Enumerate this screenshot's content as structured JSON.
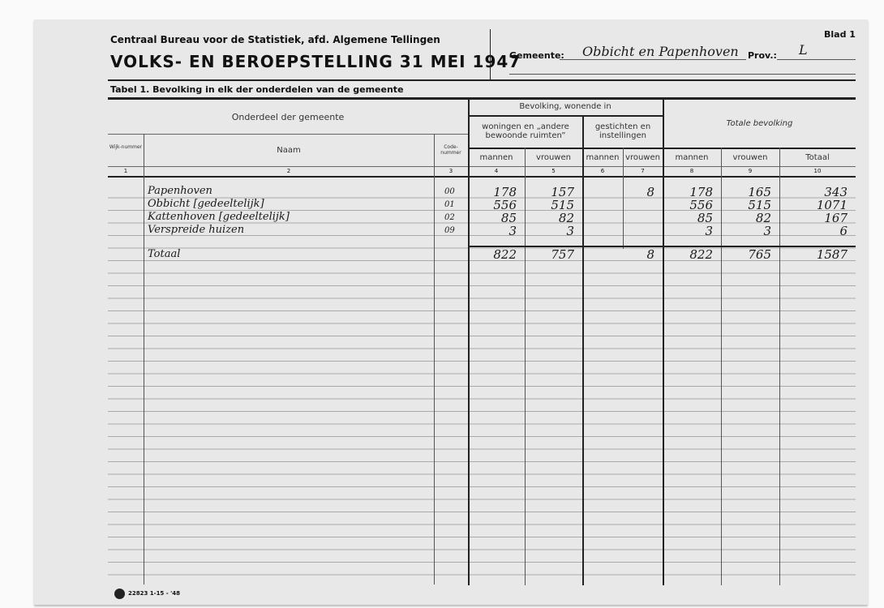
{
  "header": {
    "agency": "Centraal Bureau voor de Statistiek, afd. Algemene Tellingen",
    "title": "VOLKS- EN BEROEPSTELLING 31 MEI 1947",
    "sheet": "Blad 1",
    "municipality_label": "Gemeente:",
    "municipality_value": "Obbicht en Papenhoven",
    "province_label": "Prov.:",
    "province_value": "L"
  },
  "table": {
    "caption": "Tabel 1.  Bevolking in elk der onderdelen van de gemeente",
    "headers": {
      "section": "Onderdeel der gemeente",
      "wijk": "Wijk-nummer",
      "naam": "Naam",
      "code": "Code-nummer",
      "bevolking": "Bevolking, wonende in",
      "woningen": "woningen en „andere bewoonde ruimten”",
      "gestichten": "gestichten en instellingen",
      "totale": "Totale bevolking",
      "mannen": "mannen",
      "vrouwen": "vrouwen",
      "totaal": "Totaal"
    },
    "column_numbers": [
      "1",
      "2",
      "3",
      "4",
      "5",
      "6",
      "7",
      "8",
      "9",
      "10"
    ],
    "rows": [
      {
        "naam": "Papenhoven",
        "code": "00",
        "c4": "178",
        "c5": "157",
        "c6": "",
        "c7": "8",
        "c8": "178",
        "c9": "165",
        "c10": "343"
      },
      {
        "naam": "Obbicht [gedeeltelijk]",
        "code": "01",
        "c4": "556",
        "c5": "515",
        "c6": "",
        "c7": "",
        "c8": "556",
        "c9": "515",
        "c10": "1071"
      },
      {
        "naam": "Kattenhoven [gedeeltelijk]",
        "code": "02",
        "c4": "85",
        "c5": "82",
        "c6": "",
        "c7": "",
        "c8": "85",
        "c9": "82",
        "c10": "167"
      },
      {
        "naam": "Verspreide huizen",
        "code": "09",
        "c4": "3",
        "c5": "3",
        "c6": "",
        "c7": "",
        "c8": "3",
        "c9": "3",
        "c10": "6"
      }
    ],
    "total": {
      "naam": "Totaal",
      "c4": "822",
      "c5": "757",
      "c6": "",
      "c7": "8",
      "c8": "822",
      "c9": "765",
      "c10": "1587"
    }
  },
  "footer": {
    "print_code": "22823 1-15 - '48"
  }
}
